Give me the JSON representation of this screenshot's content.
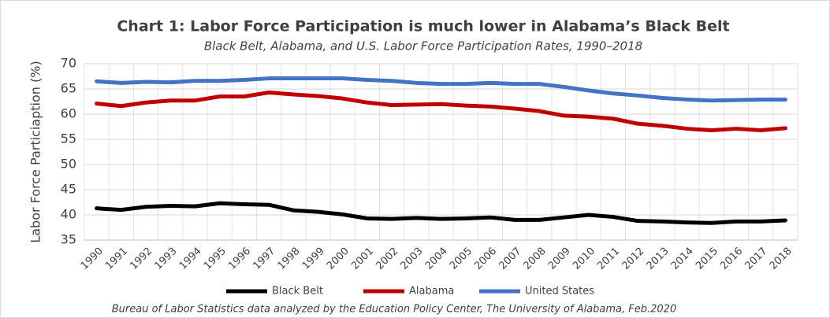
{
  "chart_data": {
    "type": "line",
    "title": "Chart 1: Labor Force Participation is much lower in Alabama’s Black Belt",
    "subtitle": "Black Belt, Alabama, and U.S. Labor Force Participation Rates, 1990–2018",
    "y_label": "Labor Force Particiaption (%)",
    "source": "Bureau of Labor Statistics data analyzed by the Education Policy Center, The University of Alabama, Feb.2020",
    "categories": [
      "1990",
      "1991",
      "1992",
      "1993",
      "1994",
      "1995",
      "1996",
      "1997",
      "1998",
      "1999",
      "2000",
      "2001",
      "2002",
      "2003",
      "2004",
      "2005",
      "2006",
      "2007",
      "2008",
      "2009",
      "2010",
      "2011",
      "2012",
      "2013",
      "2014",
      "2015",
      "2016",
      "2017",
      "2018"
    ],
    "series": [
      {
        "name": "Black Belt",
        "color": "#000000",
        "values": [
          41.3,
          41.0,
          41.6,
          41.8,
          41.7,
          42.3,
          42.1,
          42.0,
          40.9,
          40.6,
          40.1,
          39.3,
          39.2,
          39.4,
          39.2,
          39.3,
          39.5,
          39.0,
          39.0,
          39.5,
          40.0,
          39.6,
          38.8,
          38.7,
          38.5,
          38.4,
          38.7,
          38.7,
          38.9
        ]
      },
      {
        "name": "Alabama",
        "color": "#c00000",
        "values": [
          62.1,
          61.6,
          62.3,
          62.7,
          62.7,
          63.5,
          63.5,
          64.3,
          63.9,
          63.6,
          63.1,
          62.3,
          61.8,
          61.9,
          62.0,
          61.7,
          61.5,
          61.1,
          60.6,
          59.7,
          59.5,
          59.1,
          58.1,
          57.7,
          57.1,
          56.8,
          57.1,
          56.8,
          57.2
        ]
      },
      {
        "name": "United States",
        "color": "#4472c4",
        "values": [
          66.5,
          66.2,
          66.4,
          66.3,
          66.6,
          66.6,
          66.8,
          67.1,
          67.1,
          67.1,
          67.1,
          66.8,
          66.6,
          66.2,
          66.0,
          66.0,
          66.2,
          66.0,
          66.0,
          65.4,
          64.7,
          64.1,
          63.7,
          63.2,
          62.9,
          62.7,
          62.8,
          62.9,
          62.9
        ]
      }
    ],
    "ylim": [
      35,
      70
    ],
    "yticks": [
      35,
      40,
      45,
      50,
      55,
      60,
      65,
      70
    ],
    "grid": true,
    "legend": "bottom"
  }
}
